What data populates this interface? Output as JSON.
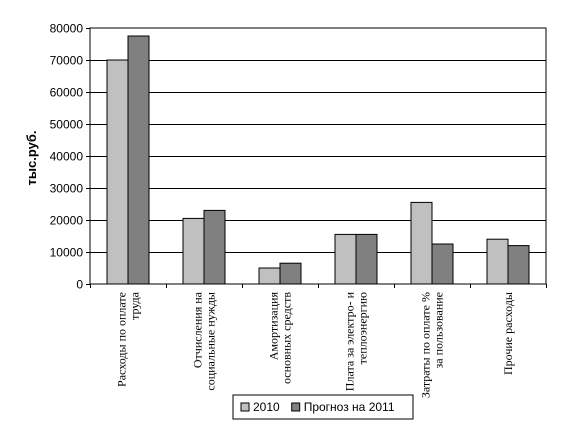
{
  "chart_data": {
    "type": "bar",
    "title": "",
    "xlabel": "",
    "ylabel": "тыс.руб.",
    "ylim": [
      0,
      80000
    ],
    "yticks": [
      0,
      10000,
      20000,
      30000,
      40000,
      50000,
      60000,
      70000,
      80000
    ],
    "grid": true,
    "legend": "bottom",
    "categories": [
      [
        "Расходы по оплате",
        "труда"
      ],
      [
        "Отчисления на",
        "социальные нужды"
      ],
      [
        "Амортизация",
        "основных средств"
      ],
      [
        "Плата за электро- и",
        "теплоэнергию"
      ],
      [
        "Затраты по оплате %",
        "за пользование"
      ],
      [
        "Прочие расходы"
      ]
    ],
    "series": [
      {
        "name": "2010",
        "color": "#c0c0c0",
        "values": [
          70000,
          20500,
          5000,
          15500,
          25500,
          14000
        ]
      },
      {
        "name": "Прогноз на 2011",
        "color": "#808080",
        "values": [
          77500,
          23000,
          6500,
          15500,
          12500,
          12000
        ]
      }
    ]
  }
}
